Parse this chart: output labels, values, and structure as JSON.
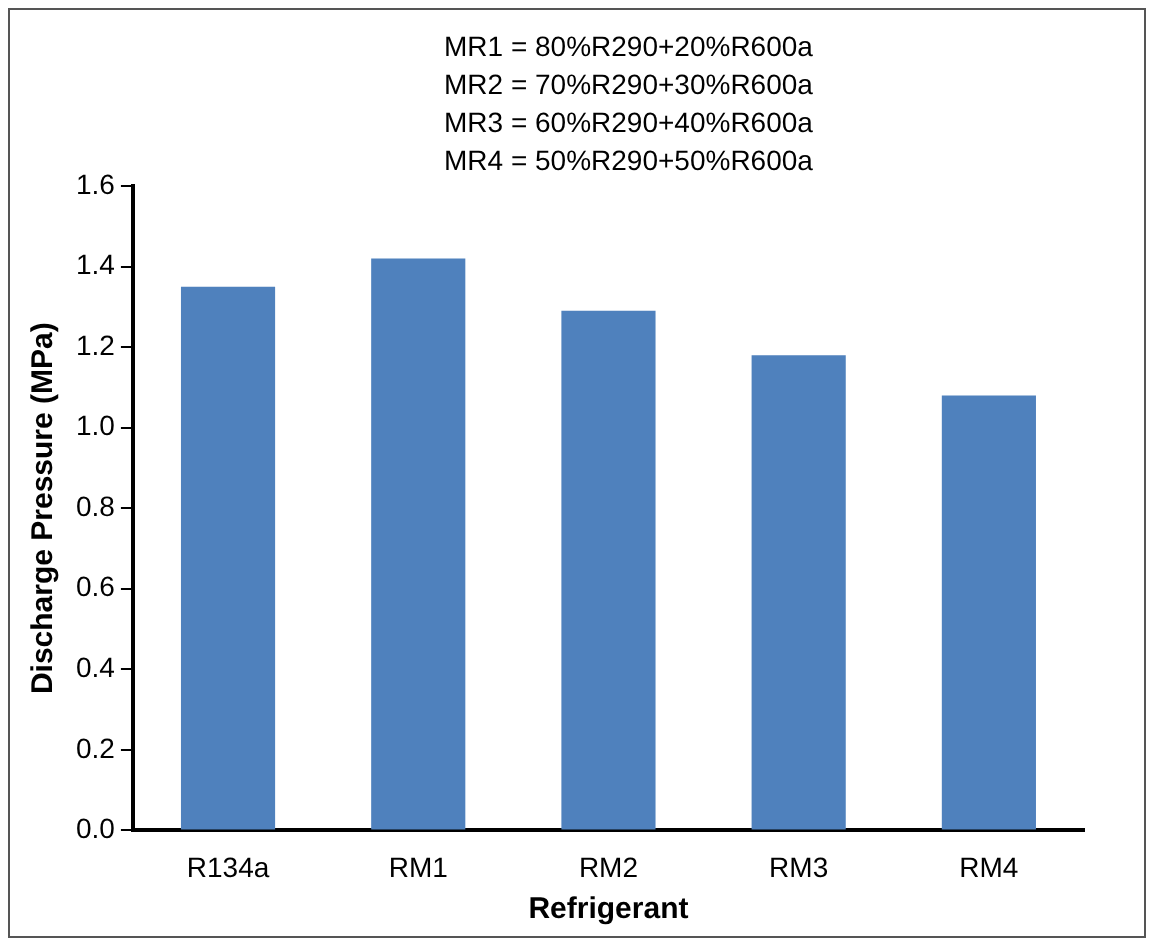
{
  "chart_data": {
    "type": "bar",
    "xlabel": "Refrigerant",
    "ylabel": "Discharge Pressure (MPa)",
    "categories": [
      "R134a",
      "RM1",
      "RM2",
      "RM3",
      "RM4"
    ],
    "values": [
      1.35,
      1.42,
      1.29,
      1.18,
      1.08
    ],
    "color": "#4f81bd",
    "ylim": [
      0,
      1.6
    ],
    "yticks": [
      {
        "value": 0,
        "label": "0.0"
      },
      {
        "value": 0.2,
        "label": "0.2"
      },
      {
        "value": 0.4,
        "label": "0.4"
      },
      {
        "value": 0.6,
        "label": "0.6"
      },
      {
        "value": 0.8,
        "label": "0.8"
      },
      {
        "value": 1,
        "label": "1.0"
      },
      {
        "value": 1.2,
        "label": "1.2"
      },
      {
        "value": 1.4,
        "label": "1.4"
      },
      {
        "value": 1.6,
        "label": "1.6"
      }
    ],
    "annotations": [
      "MR1 = 80%R290+20%R600a",
      "MR2 = 70%R290+30%R600a",
      "MR3 = 60%R290+40%R600a",
      "MR4 = 50%R290+50%R600a"
    ],
    "grid": false,
    "legend": false
  }
}
